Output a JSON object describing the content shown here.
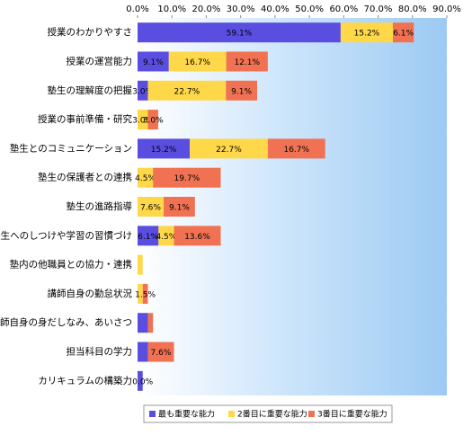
{
  "chart_data": {
    "type": "stacked-bar-horizontal",
    "categories": [
      "授業のわかりやすさ",
      "授業の運営能力",
      "塾生の理解度の把握",
      "授業の事前準備・研究",
      "塾生とのコミュニケーション",
      "塾生の保護者との連携",
      "塾生の進路指導",
      "塾生へのしつけや学習の習慣づけ",
      "塾内の他職員との協力・連携",
      "講師自身の勤怠状況",
      "講師自身の身だしなみ、あいさつ",
      "担当科目の学力",
      "カリキュラムの構築力"
    ],
    "series": [
      {
        "name": "最も重要な能力",
        "color": "#5a4ee0",
        "values": [
          59.1,
          9.1,
          3.0,
          0,
          15.2,
          0,
          0,
          6.1,
          0,
          0,
          3.0,
          3.0,
          1.5
        ],
        "value_labels": [
          "59.1%",
          "9.1%",
          "3.0%",
          null,
          "15.2%",
          null,
          null,
          "6.1%",
          null,
          null,
          null,
          null,
          null
        ]
      },
      {
        "name": "2番目に重要な能力",
        "color": "#ffd84a",
        "values": [
          15.2,
          16.7,
          22.7,
          3.0,
          22.7,
          4.5,
          7.6,
          4.5,
          1.5,
          1.5,
          0,
          0,
          0
        ],
        "value_labels": [
          "15.2%",
          "16.7%",
          "22.7%",
          "3.0%",
          "22.7%",
          "4.5%",
          "7.6%",
          "4.5%",
          null,
          null,
          null,
          null,
          "0.0%"
        ]
      },
      {
        "name": "3番目に重要な能力",
        "color": "#f07252",
        "values": [
          6.1,
          12.1,
          9.1,
          3.0,
          16.7,
          19.7,
          9.1,
          13.6,
          0,
          1.5,
          1.5,
          7.6,
          0
        ],
        "value_labels": [
          "6.1%",
          "12.1%",
          "9.1%",
          "3.0%",
          "16.7%",
          "19.7%",
          "9.1%",
          "13.6%",
          null,
          "1.5%",
          null,
          "7.6%",
          null
        ]
      }
    ],
    "xlim": [
      0,
      90
    ],
    "xticks": [
      {
        "value": 0,
        "label": "0.0%"
      },
      {
        "value": 10,
        "label": "10.0%"
      },
      {
        "value": 20,
        "label": "20.0%"
      },
      {
        "value": 30,
        "label": "30.0%"
      },
      {
        "value": 40,
        "label": "40.0%"
      },
      {
        "value": 50,
        "label": "50.0%"
      },
      {
        "value": 60,
        "label": "60.0%"
      },
      {
        "value": 70,
        "label": "70.0%"
      },
      {
        "value": 80,
        "label": "80.0%"
      },
      {
        "value": 90,
        "label": "90.0%"
      }
    ],
    "legend": "bottom"
  }
}
